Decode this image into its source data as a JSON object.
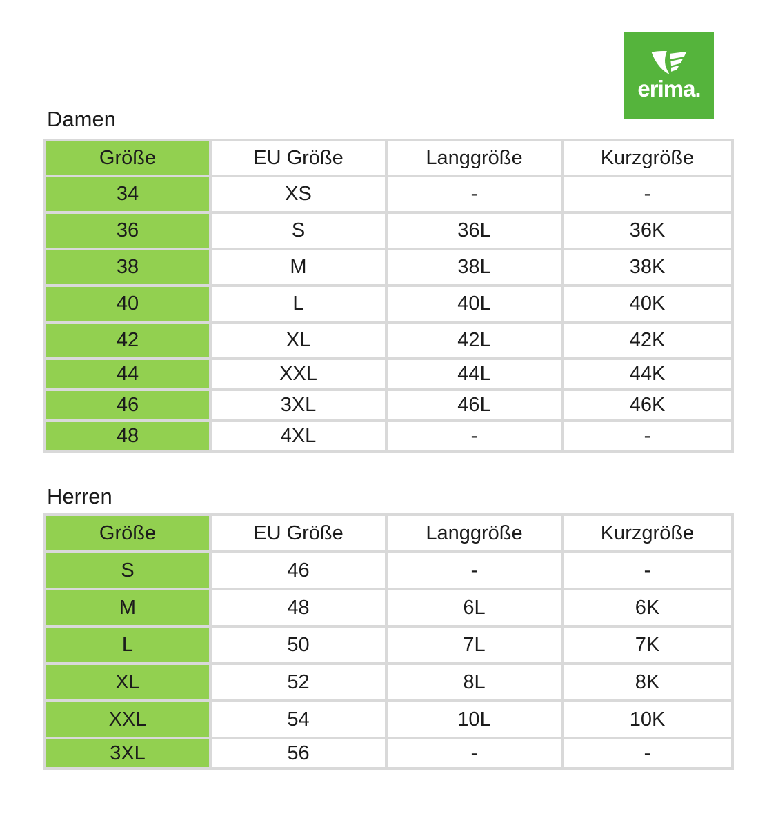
{
  "logo": {
    "wordmark": "erima.",
    "bg_color": "#55b43c"
  },
  "colors": {
    "cell_green": "#92d050",
    "border": "#d9d9d9"
  },
  "tables": [
    {
      "title": "Damen",
      "headers": [
        "Größe",
        "EU Größe",
        "Langgröße",
        "Kurzgröße"
      ],
      "rows": [
        [
          "34",
          "XS",
          "-",
          "-"
        ],
        [
          "36",
          "S",
          "36L",
          "36K"
        ],
        [
          "38",
          "M",
          "38L",
          "38K"
        ],
        [
          "40",
          "L",
          "40L",
          "40K"
        ],
        [
          "42",
          "XL",
          "42L",
          "42K"
        ],
        [
          "44",
          "XXL",
          "44L",
          "44K"
        ],
        [
          "46",
          "3XL",
          "46L",
          "46K"
        ],
        [
          "48",
          "4XL",
          "-",
          "-"
        ]
      ]
    },
    {
      "title": "Herren",
      "headers": [
        "Größe",
        "EU Größe",
        "Langgröße",
        "Kurzgröße"
      ],
      "rows": [
        [
          "S",
          "46",
          "-",
          "-"
        ],
        [
          "M",
          "48",
          "6L",
          "6K"
        ],
        [
          "L",
          "50",
          "7L",
          "7K"
        ],
        [
          "XL",
          "52",
          "8L",
          "8K"
        ],
        [
          "XXL",
          "54",
          "10L",
          "10K"
        ],
        [
          "3XL",
          "56",
          "-",
          "-"
        ]
      ]
    }
  ]
}
